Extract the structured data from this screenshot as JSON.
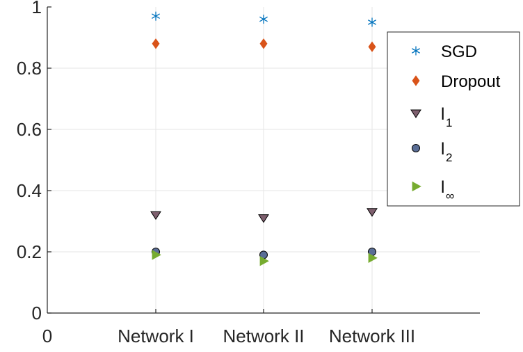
{
  "chart_data": {
    "type": "scatter",
    "title": "",
    "xlabel": "",
    "ylabel": "",
    "categories": [
      "Network I",
      "Network II",
      "Network III"
    ],
    "x_origin_label": "0",
    "ylim": [
      0,
      1
    ],
    "yticks": [
      "0",
      "0.2",
      "0.4",
      "0.6",
      "0.8",
      "1"
    ],
    "grid": true,
    "legend_position": "top-right",
    "series": [
      {
        "name": "SGD",
        "sub": "",
        "marker": "asterisk",
        "color": "#0072BD",
        "values": [
          0.97,
          0.96,
          0.95
        ]
      },
      {
        "name": "Dropout",
        "sub": "",
        "marker": "diamond",
        "color": "#D95319",
        "values": [
          0.88,
          0.88,
          0.87
        ]
      },
      {
        "name": "l",
        "sub": "1",
        "marker": "triangle-down",
        "color": "#7E5F6E",
        "values": [
          0.32,
          0.31,
          0.33
        ]
      },
      {
        "name": "l",
        "sub": "2",
        "marker": "circle",
        "color": "#5A6E96",
        "values": [
          0.2,
          0.19,
          0.2
        ]
      },
      {
        "name": "l",
        "sub": "∞",
        "marker": "triangle-right",
        "color": "#77AC30",
        "values": [
          0.19,
          0.17,
          0.18
        ]
      }
    ]
  }
}
